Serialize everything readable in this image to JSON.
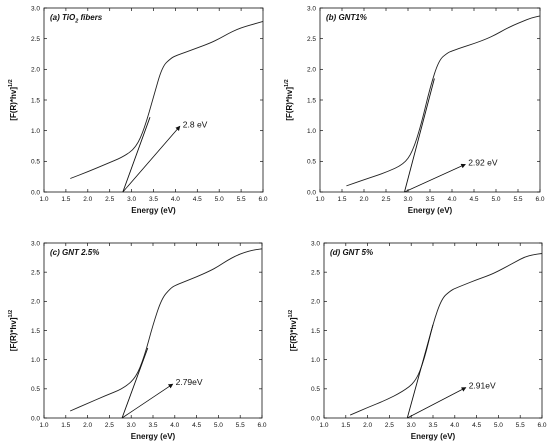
{
  "chart_data": [
    {
      "type": "line",
      "title": "(a) TiO",
      "title_sub": "2",
      "title_after": " fibers",
      "xlabel": "Energy (eV)",
      "ylabel": "[F(R)*hv]",
      "ylabel_sup": "1/2",
      "xlim": [
        1.0,
        6.0
      ],
      "ylim": [
        0.0,
        3.0
      ],
      "xticks": [
        "1.0",
        "1.5",
        "2.0",
        "2.5",
        "3.0",
        "3.5",
        "4.0",
        "4.5",
        "5.0",
        "5.5",
        "6.0"
      ],
      "yticks": [
        "0.0",
        "0.5",
        "1.0",
        "1.5",
        "2.0",
        "2.5",
        "3.0"
      ],
      "series": [
        {
          "x": [
            1.6,
            2.0,
            2.4,
            2.8,
            3.1,
            3.3,
            3.5,
            3.7,
            3.9,
            4.0,
            4.2,
            4.5,
            4.8,
            5.0,
            5.2,
            5.4,
            5.6,
            5.8,
            6.0
          ],
          "y": [
            0.22,
            0.33,
            0.45,
            0.57,
            0.72,
            1.05,
            1.55,
            2.05,
            2.18,
            2.22,
            2.27,
            2.35,
            2.43,
            2.5,
            2.58,
            2.65,
            2.7,
            2.74,
            2.78
          ]
        }
      ],
      "tangent": {
        "x": [
          2.8,
          3.42
        ],
        "y": [
          0.0,
          1.22
        ]
      },
      "annotation": {
        "text": "2.8 eV",
        "arrow_from": [
          2.8,
          0.0
        ],
        "arrow_to": [
          4.1,
          1.07
        ]
      }
    },
    {
      "type": "line",
      "title": "(b) GNT1%",
      "title_sub": "",
      "title_after": "",
      "xlabel": "Energy (eV)",
      "ylabel": "[F(R)*hv]",
      "ylabel_sup": "1/2",
      "xlim": [
        1.0,
        6.0
      ],
      "ylim": [
        0.0,
        3.0
      ],
      "xticks": [
        "1.0",
        "1.5",
        "2.0",
        "2.5",
        "3.0",
        "3.5",
        "4.0",
        "4.5",
        "5.0",
        "5.5",
        "6.0"
      ],
      "yticks": [
        "0.0",
        "0.5",
        "1.0",
        "1.5",
        "2.0",
        "2.5",
        "3.0"
      ],
      "series": [
        {
          "x": [
            1.6,
            2.0,
            2.5,
            2.9,
            3.1,
            3.3,
            3.5,
            3.7,
            3.9,
            4.0,
            4.2,
            4.5,
            4.8,
            5.0,
            5.2,
            5.4,
            5.6,
            5.8,
            6.0
          ],
          "y": [
            0.1,
            0.2,
            0.32,
            0.45,
            0.65,
            1.1,
            1.7,
            2.15,
            2.27,
            2.3,
            2.35,
            2.42,
            2.5,
            2.57,
            2.65,
            2.72,
            2.78,
            2.84,
            2.87
          ]
        }
      ],
      "tangent": {
        "x": [
          2.92,
          3.6
        ],
        "y": [
          0.0,
          1.85
        ]
      },
      "annotation": {
        "text": "2.92 eV",
        "arrow_from": [
          2.92,
          0.0
        ],
        "arrow_to": [
          4.3,
          0.45
        ]
      }
    },
    {
      "type": "line",
      "title": "(c) GNT 2.5%",
      "title_sub": "",
      "title_after": "",
      "xlabel": "Energy (eV)",
      "ylabel": "[F(R)*hv]",
      "ylabel_sup": "1/2",
      "xlim": [
        1.0,
        6.0
      ],
      "ylim": [
        0.0,
        3.0
      ],
      "xticks": [
        "1.0",
        "1.5",
        "2.0",
        "2.5",
        "3.0",
        "3.5",
        "4.0",
        "4.5",
        "5.0",
        "5.5",
        "6.0"
      ],
      "yticks": [
        "0.0",
        "0.5",
        "1.0",
        "1.5",
        "2.0",
        "2.5",
        "3.0"
      ],
      "series": [
        {
          "x": [
            1.6,
            2.0,
            2.4,
            2.8,
            3.1,
            3.3,
            3.5,
            3.7,
            3.9,
            4.0,
            4.2,
            4.5,
            4.8,
            5.0,
            5.2,
            5.4,
            5.6,
            5.8,
            6.0
          ],
          "y": [
            0.12,
            0.25,
            0.38,
            0.5,
            0.68,
            1.05,
            1.6,
            2.05,
            2.22,
            2.27,
            2.33,
            2.42,
            2.52,
            2.6,
            2.7,
            2.78,
            2.84,
            2.88,
            2.9
          ]
        }
      ],
      "tangent": {
        "x": [
          2.79,
          3.38
        ],
        "y": [
          0.0,
          1.2
        ]
      },
      "annotation": {
        "text": "2.79eV",
        "arrow_from": [
          2.79,
          0.0
        ],
        "arrow_to": [
          3.95,
          0.58
        ]
      }
    },
    {
      "type": "line",
      "title": "(d) GNT 5%",
      "title_sub": "",
      "title_after": "",
      "xlabel": "Energy (eV)",
      "ylabel": "[F(R)*hv]",
      "ylabel_sup": "1/2",
      "xlim": [
        1.0,
        6.0
      ],
      "ylim": [
        0.0,
        3.0
      ],
      "xticks": [
        "1.0",
        "1.5",
        "2.0",
        "2.5",
        "3.0",
        "3.5",
        "4.0",
        "4.5",
        "5.0",
        "5.5",
        "6.0"
      ],
      "yticks": [
        "0.0",
        "0.5",
        "1.0",
        "1.5",
        "2.0",
        "2.5",
        "3.0"
      ],
      "series": [
        {
          "x": [
            1.6,
            2.0,
            2.4,
            2.8,
            3.1,
            3.3,
            3.5,
            3.7,
            3.9,
            4.0,
            4.2,
            4.5,
            4.8,
            5.0,
            5.2,
            5.4,
            5.6,
            5.8,
            6.0
          ],
          "y": [
            0.05,
            0.18,
            0.3,
            0.45,
            0.62,
            1.0,
            1.62,
            2.05,
            2.18,
            2.22,
            2.28,
            2.37,
            2.45,
            2.52,
            2.6,
            2.68,
            2.76,
            2.8,
            2.82
          ]
        }
      ],
      "tangent": {
        "x": [
          2.91,
          3.5
        ],
        "y": [
          0.0,
          1.6
        ]
      },
      "annotation": {
        "text": "2.91eV",
        "arrow_from": [
          2.91,
          0.0
        ],
        "arrow_to": [
          4.25,
          0.52
        ]
      }
    }
  ]
}
